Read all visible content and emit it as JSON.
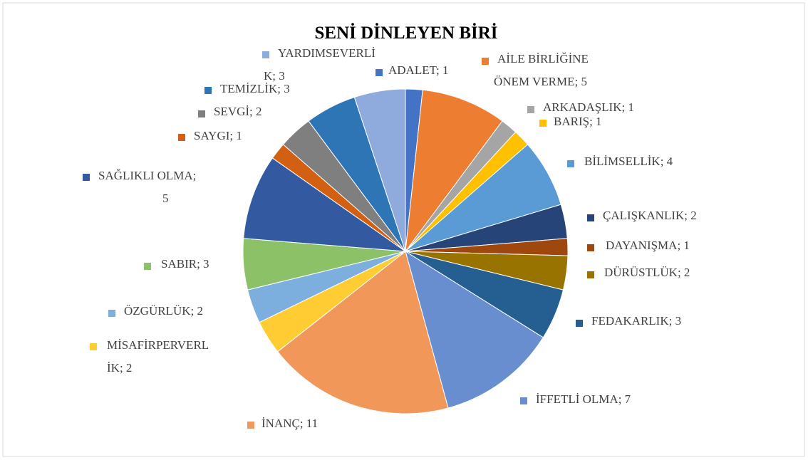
{
  "chart_data": {
    "type": "pie",
    "title": "SENİ DİNLEYEN BİRİ",
    "values": [
      1,
      5,
      1,
      1,
      4,
      2,
      1,
      2,
      3,
      7,
      11,
      2,
      2,
      3,
      5,
      1,
      2,
      3,
      3
    ],
    "value_labels": [
      "ADALET; 1",
      "AİLE BİRLİĞİNE\nÖNEM VERME; 5",
      "ARKADAŞLIK; 1",
      "BARIŞ; 1",
      "BİLİMSELLİK; 4",
      "ÇALIŞKANLIK; 2",
      "DAYANIŞMA; 1",
      "DÜRÜSTLÜK; 2",
      "FEDAKARLIK; 3",
      "İFFETLİ OLMA; 7",
      "İNANÇ; 11",
      "MİSAFİRPERVERL\nİK; 2",
      "ÖZGÜRLÜK; 2",
      "SABIR; 3",
      "SAĞLIKLI OLMA;\n5",
      "SAYGI; 1",
      "SEVGİ; 2",
      "TEMİZLİK; 3",
      "YARDIMSEVERLİ\nK; 3"
    ],
    "colors": [
      "#4472c4",
      "#ed7d31",
      "#a5a5a5",
      "#ffc000",
      "#5b9bd5",
      "#264478",
      "#9e480e",
      "#997300",
      "#255e91",
      "#698ed0",
      "#f1975a",
      "#ffcd33",
      "#7cafdd",
      "#8cc168",
      "#335aa1",
      "#d26012",
      "#7f7f7f",
      "#2e75b6",
      "#8faadc"
    ]
  }
}
